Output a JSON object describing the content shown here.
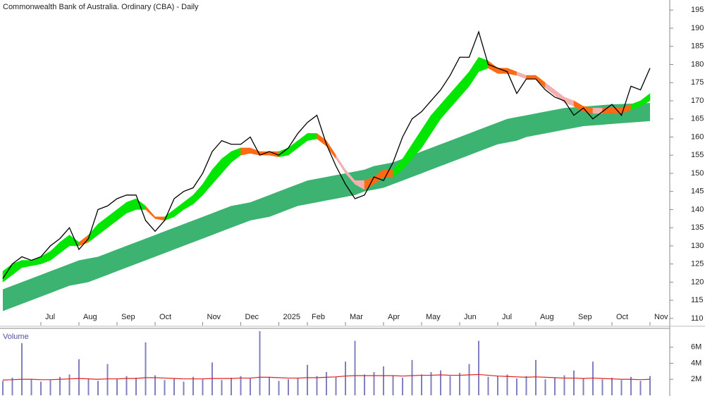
{
  "chart_data": {
    "type": "stock",
    "title": "Commonwealth Bank of Australia. Ordinary (CBA) - Daily",
    "categories": [
      null,
      null,
      null,
      null,
      "Jul",
      null,
      null,
      null,
      "Aug",
      null,
      null,
      null,
      "Sep",
      null,
      null,
      null,
      "Oct",
      null,
      null,
      null,
      null,
      "Nov",
      null,
      null,
      null,
      "Dec",
      null,
      null,
      null,
      "2025",
      null,
      null,
      "Feb",
      null,
      null,
      null,
      "Mar",
      null,
      null,
      null,
      "Apr",
      null,
      null,
      null,
      "May",
      null,
      null,
      null,
      "Jun",
      null,
      null,
      null,
      "Jul",
      null,
      null,
      null,
      "Aug",
      null,
      null,
      null,
      "Sep",
      null,
      null,
      null,
      "Oct",
      null,
      null,
      null,
      "Nov"
    ],
    "price": {
      "color": "#000000",
      "values": [
        121,
        125,
        127,
        126,
        127,
        130,
        132,
        135,
        129,
        132,
        140,
        141,
        143,
        144,
        144,
        137,
        134,
        137,
        143,
        145,
        146,
        150,
        156,
        159,
        158,
        158,
        160,
        155,
        156,
        155,
        157,
        161,
        164,
        166,
        158,
        152,
        147,
        143,
        144,
        149,
        148,
        153,
        160,
        165,
        167,
        170,
        173,
        177,
        182,
        182,
        189,
        180,
        179,
        178,
        172,
        176,
        176,
        173,
        171,
        170,
        166,
        168,
        165,
        167,
        169,
        166,
        174,
        173,
        179
      ]
    },
    "short_ribbon": {
      "upper": [
        123,
        125,
        126,
        126,
        127,
        128.5,
        131,
        133,
        131,
        133,
        136,
        138,
        140,
        142,
        143,
        141,
        138,
        138,
        140,
        142,
        144,
        147,
        151,
        154,
        156,
        157,
        157,
        156,
        156,
        156,
        157,
        159,
        161,
        161,
        159,
        155,
        151,
        148,
        148,
        149,
        151,
        151,
        154,
        158,
        162,
        166,
        169,
        172,
        175,
        178,
        182,
        181,
        179,
        179,
        178,
        177,
        177,
        175,
        173,
        171,
        170,
        168.5,
        168,
        168,
        168,
        168,
        169,
        170,
        172
      ],
      "lower": [
        120,
        122,
        124,
        124.5,
        125,
        126,
        128,
        130,
        130,
        131,
        133,
        135,
        137,
        139,
        140,
        140,
        137.5,
        137,
        138,
        140,
        141.5,
        144,
        147,
        150,
        153,
        155,
        155.5,
        155,
        155,
        154.5,
        155,
        157,
        159,
        159.5,
        157.5,
        154,
        150,
        147,
        145.5,
        147,
        149,
        149,
        151,
        154,
        157,
        161,
        165,
        168,
        171,
        174,
        178,
        179,
        177.5,
        177.5,
        177,
        176,
        176,
        173.5,
        171.5,
        169.5,
        168.5,
        167,
        166.5,
        166.5,
        166.5,
        166.5,
        167.5,
        168.5,
        170
      ],
      "colors": [
        "#00e600",
        "#00e600",
        "#00e600",
        "#00e600",
        "#00e600",
        "#00e600",
        "#00e600",
        "#00e600",
        "#ff6a13",
        "#00e600",
        "#00e600",
        "#00e600",
        "#00e600",
        "#00e600",
        "#00e600",
        "#ff6a13",
        "#ff6a13",
        "#00e600",
        "#00e600",
        "#00e600",
        "#00e600",
        "#00e600",
        "#00e600",
        "#00e600",
        "#00e600",
        "#ff6a13",
        "#ff6a13",
        "#ff6a13",
        "#ff6a13",
        "#00e600",
        "#00e600",
        "#00e600",
        "#00e600",
        "#ff6a13",
        "#ff6a13",
        "#f4b0b0",
        "#f4b0b0",
        "#f4b0b0",
        "#ff6a13",
        "#ff6a13",
        "#ff6a13",
        "#00e600",
        "#00e600",
        "#00e600",
        "#00e600",
        "#00e600",
        "#00e600",
        "#00e600",
        "#00e600",
        "#00e600",
        "#00e600",
        "#ff6a13",
        "#ff6a13",
        "#ff6a13",
        "#f4b0b0",
        "#ff6a13",
        "#ff6a13",
        "#f4b0b0",
        "#f4b0b0",
        "#f4b0b0",
        "#ff6a13",
        "#ff6a13",
        "#f4b0b0",
        "#ff6a13",
        "#ff6a13",
        "#ff6a13",
        "#00e600",
        "#00e600",
        "#00e600"
      ]
    },
    "long_ribbon": {
      "color": "#3cb371",
      "upper": [
        118,
        119,
        120,
        121,
        122,
        123,
        124,
        125,
        126,
        126.5,
        127,
        128,
        129,
        130,
        131,
        132,
        133,
        134,
        135,
        136,
        137,
        138,
        139,
        140,
        141,
        141.5,
        142,
        143,
        144,
        145,
        146,
        147,
        148,
        148.5,
        149,
        149.5,
        150,
        150.5,
        151,
        152,
        152.5,
        153,
        154,
        155,
        156,
        157,
        158,
        159,
        160,
        161,
        162,
        163,
        164,
        165,
        165.5,
        166,
        166.5,
        167,
        167.5,
        168,
        168.2,
        168.4,
        168.6,
        168.8,
        169,
        169.1,
        169.2,
        169.3,
        169.4
      ],
      "lower": [
        112,
        113,
        114,
        115,
        116,
        117,
        118,
        119,
        119.5,
        120,
        121,
        122,
        123,
        124,
        125,
        126,
        127,
        128,
        129,
        130,
        131,
        132,
        133,
        134,
        135,
        136,
        137,
        137.5,
        138,
        139,
        140,
        141,
        141.5,
        142,
        142.5,
        143,
        143.5,
        144,
        145,
        145.5,
        146,
        147,
        148,
        149,
        150,
        151,
        152,
        153,
        154,
        155,
        156,
        157,
        158,
        158.5,
        159,
        160,
        160.5,
        161,
        161.5,
        162,
        162.5,
        163,
        163.2,
        163.4,
        163.6,
        163.8,
        164,
        164.2,
        164.4
      ]
    },
    "ylim": [
      109,
      197
    ],
    "yticks": [
      110,
      115,
      120,
      125,
      130,
      135,
      140,
      145,
      150,
      155,
      160,
      165,
      170,
      175,
      180,
      185,
      190,
      195
    ],
    "volume": {
      "label": "Volume",
      "color": "#8080c0",
      "ma_color": "#e02020",
      "values": [
        1800000,
        2200000,
        6500000,
        2000000,
        1700000,
        1900000,
        2300000,
        2600000,
        4500000,
        2100000,
        1800000,
        3900000,
        2000000,
        2400000,
        2200000,
        6600000,
        2500000,
        1900000,
        2100000,
        1700000,
        2300000,
        2000000,
        4100000,
        1900000,
        2200000,
        2400000,
        2100000,
        8000000,
        2300000,
        1800000,
        2000000,
        2200000,
        3800000,
        2400000,
        2900000,
        2300000,
        4200000,
        6800000,
        2600000,
        2900000,
        3600000,
        2500000,
        2200000,
        4400000,
        2600000,
        2900000,
        3100000,
        2400000,
        2800000,
        3900000,
        6800000,
        2300000,
        2400000,
        2600000,
        2100000,
        2400000,
        4400000,
        2000000,
        2200000,
        2500000,
        3100000,
        2100000,
        4200000,
        2000000,
        2200000,
        1900000,
        2300000,
        1800000,
        2400000
      ],
      "ma": [
        1900000,
        1950000,
        2000000,
        2000000,
        1950000,
        1950000,
        2000000,
        2050000,
        2100000,
        2050000,
        2000000,
        2050000,
        2050000,
        2100000,
        2100000,
        2200000,
        2200000,
        2150000,
        2100000,
        2050000,
        2050000,
        2050000,
        2100000,
        2100000,
        2100000,
        2150000,
        2150000,
        2250000,
        2250000,
        2200000,
        2150000,
        2150000,
        2200000,
        2200000,
        2250000,
        2300000,
        2400000,
        2450000,
        2450000,
        2450000,
        2450000,
        2450000,
        2400000,
        2450000,
        2500000,
        2500000,
        2550000,
        2500000,
        2500000,
        2550000,
        2600000,
        2500000,
        2400000,
        2350000,
        2300000,
        2250000,
        2300000,
        2250000,
        2200000,
        2150000,
        2150000,
        2100000,
        2150000,
        2100000,
        2050000,
        2000000,
        2000000,
        1950000,
        2000000
      ],
      "ylim": [
        0,
        8000000
      ],
      "yticks": [
        {
          "value": 2000000,
          "label": "2M"
        },
        {
          "value": 4000000,
          "label": "4M"
        },
        {
          "value": 6000000,
          "label": "6M"
        }
      ]
    }
  }
}
